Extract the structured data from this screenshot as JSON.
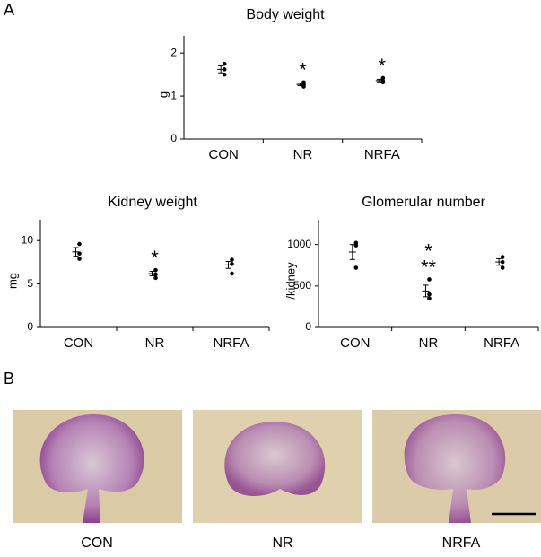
{
  "panels": {
    "a": "A",
    "b": "B"
  },
  "chart_data": [
    {
      "type": "dot",
      "title": "Body weight",
      "ylabel": "g",
      "categories": [
        "CON",
        "NR",
        "NRFA"
      ],
      "points": [
        [
          1.75,
          1.62,
          1.5
        ],
        [
          1.32,
          1.27,
          1.22
        ],
        [
          1.42,
          1.35,
          1.32
        ]
      ],
      "mean": [
        1.62,
        1.27,
        1.36
      ],
      "sem": [
        0.08,
        0.03,
        0.03
      ],
      "annotations": [
        null,
        [
          "*"
        ],
        [
          "*"
        ]
      ],
      "ylim": [
        0,
        2.4
      ],
      "yticks": [
        0,
        1,
        2
      ],
      "color": "#000000"
    },
    {
      "type": "dot",
      "title": "Kidney weight",
      "ylabel": "mg",
      "categories": [
        "CON",
        "NR",
        "NRFA"
      ],
      "points": [
        [
          9.6,
          8.5,
          7.9
        ],
        [
          6.6,
          6.1,
          5.7
        ],
        [
          7.8,
          7.3,
          6.2
        ]
      ],
      "mean": [
        8.7,
        6.2,
        7.2
      ],
      "sem": [
        0.5,
        0.25,
        0.4
      ],
      "annotations": [
        null,
        [
          "*"
        ],
        null
      ],
      "ylim": [
        0,
        12.4
      ],
      "yticks": [
        0,
        5,
        10
      ],
      "color": "#000000"
    },
    {
      "type": "dot",
      "title": "Glomerular number",
      "ylabel": "/kidney",
      "categories": [
        "CON",
        "NR",
        "NRFA"
      ],
      "points": [
        [
          1020,
          990,
          720
        ],
        [
          580,
          400,
          350
        ],
        [
          850,
          790,
          720
        ]
      ],
      "mean": [
        910,
        440,
        790
      ],
      "sem": [
        90,
        70,
        40
      ],
      "annotations": [
        null,
        [
          "*",
          "**"
        ],
        null
      ],
      "ylim": [
        0,
        1300
      ],
      "yticks": [
        0,
        500,
        1000
      ],
      "color": "#000000"
    }
  ],
  "images": [
    {
      "caption": "CON"
    },
    {
      "caption": "NR"
    },
    {
      "caption": "NRFA"
    }
  ]
}
